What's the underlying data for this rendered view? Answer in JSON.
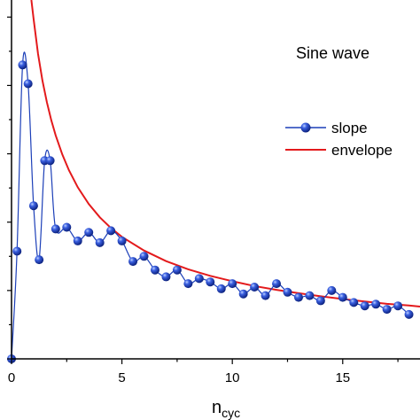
{
  "chart_data": {
    "type": "line",
    "title": "Sine wave",
    "xlabel": "n",
    "xlabel_subscript": "cyc",
    "ylabel": "",
    "xlim": [
      0,
      18.5
    ],
    "ylim": [
      0,
      1.05
    ],
    "x_ticks": [
      "0",
      "5",
      "10",
      "15"
    ],
    "legend_position": "right",
    "series": [
      {
        "name": "slope",
        "color": "#1c3fb8",
        "marker": "sphere",
        "x": [
          0,
          0.25,
          0.5,
          0.75,
          1.0,
          1.25,
          1.5,
          1.75,
          2.0,
          2.5,
          3.0,
          3.5,
          4.0,
          4.5,
          5.0,
          5.5,
          6.0,
          6.5,
          7.0,
          7.5,
          8.0,
          8.5,
          9.0,
          9.5,
          10.0,
          10.5,
          11.0,
          11.5,
          12.0,
          12.5,
          13.0,
          13.5,
          14.0,
          14.5,
          15.0,
          15.5,
          16.0,
          16.5,
          17.0,
          17.5,
          18.0
        ],
        "y": [
          0.0,
          0.315,
          0.86,
          0.805,
          0.448,
          0.29,
          0.58,
          0.58,
          0.38,
          0.385,
          0.345,
          0.37,
          0.34,
          0.375,
          0.345,
          0.285,
          0.3,
          0.26,
          0.24,
          0.26,
          0.22,
          0.235,
          0.225,
          0.205,
          0.22,
          0.19,
          0.21,
          0.185,
          0.22,
          0.195,
          0.18,
          0.185,
          0.17,
          0.2,
          0.18,
          0.165,
          0.155,
          0.16,
          0.145,
          0.155,
          0.13
        ]
      },
      {
        "name": "envelope",
        "color": "#e31a1c",
        "marker": "none",
        "x": [
          0.9,
          1.0,
          1.2,
          1.4,
          1.6,
          1.8,
          2.0,
          2.3,
          2.6,
          3.0,
          3.5,
          4.0,
          4.5,
          5.0,
          6.0,
          7.0,
          8.0,
          9.0,
          10.0,
          11.0,
          12.0,
          13.0,
          14.0,
          15.0,
          16.0,
          17.0,
          18.0,
          18.5
        ],
        "y": [
          1.05,
          0.995,
          0.893,
          0.814,
          0.751,
          0.698,
          0.654,
          0.598,
          0.552,
          0.502,
          0.453,
          0.414,
          0.383,
          0.357,
          0.317,
          0.286,
          0.262,
          0.243,
          0.227,
          0.213,
          0.202,
          0.192,
          0.183,
          0.175,
          0.168,
          0.161,
          0.156,
          0.153
        ]
      }
    ]
  }
}
